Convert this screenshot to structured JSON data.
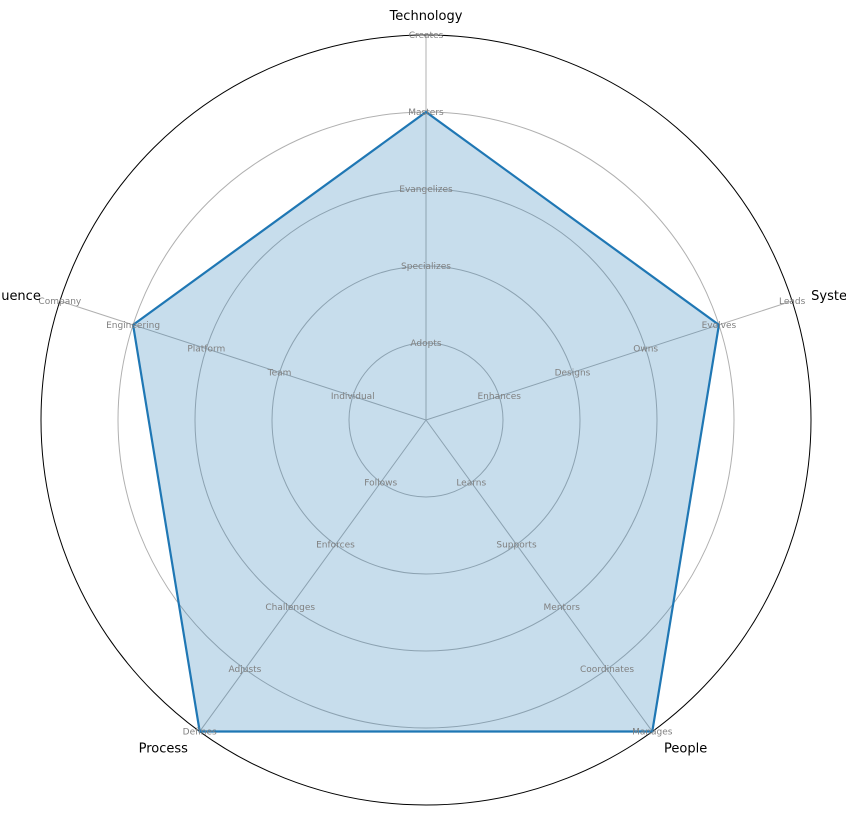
{
  "chart_data": {
    "type": "radar",
    "axes": [
      "Technology",
      "System",
      "People",
      "Process",
      "Influence"
    ],
    "values": [
      4,
      4,
      5,
      5,
      4
    ],
    "rlim": [
      0,
      5
    ],
    "grid": true,
    "levels": {
      "Technology": [
        "Adopts",
        "Specializes",
        "Evangelizes",
        "Masters",
        "Creates"
      ],
      "System": [
        "Enhances",
        "Designs",
        "Owns",
        "Evolves",
        "Leads"
      ],
      "People": [
        "Learns",
        "Supports",
        "Mentors",
        "Coordinates",
        "Manages"
      ],
      "Process": [
        "Follows",
        "Enforces",
        "Challenges",
        "Adjusts",
        "Defines"
      ],
      "Influence": [
        "Individual",
        "Team",
        "Platform",
        "Engineering",
        "Company"
      ]
    },
    "colors": {
      "line": "#1f77b4",
      "fill": "#1f77b4",
      "grid": "#b0b0b0",
      "level_text": "#808080",
      "outline": "#000000"
    }
  }
}
